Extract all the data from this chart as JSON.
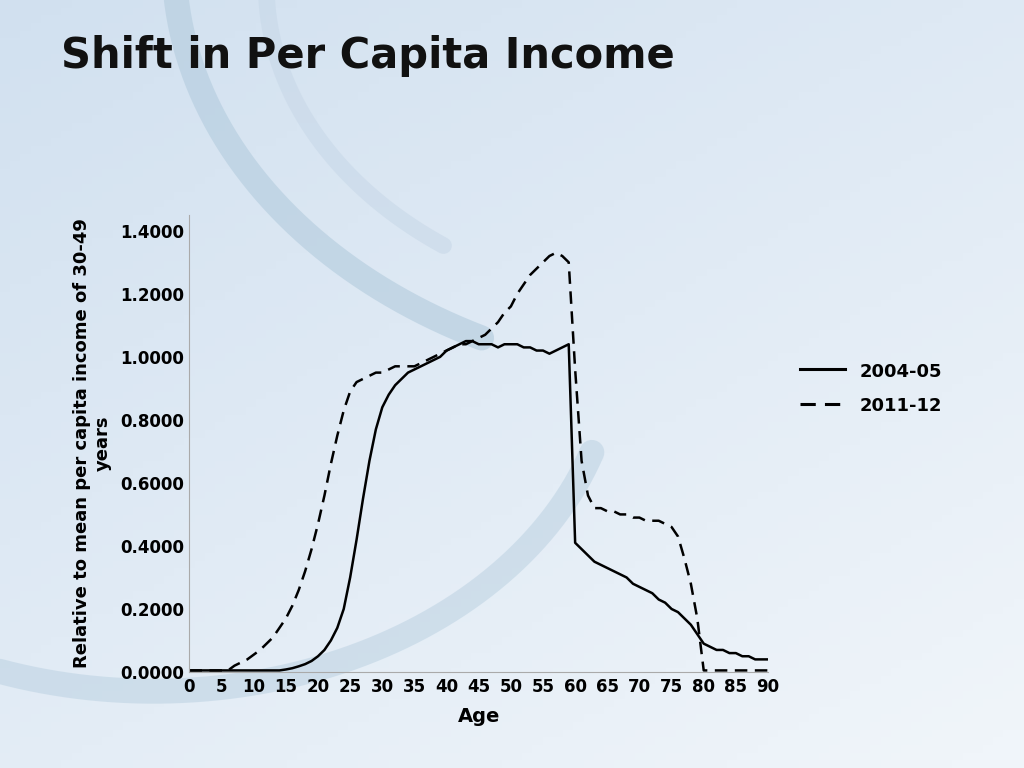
{
  "title": "Shift in Per Capita Income",
  "xlabel": "Age",
  "ylabel_line1": "Relative to mean per capita income of 30-49",
  "ylabel_line2": "years",
  "bg_color_top": "#ccd9e8",
  "bg_color_bottom": "#e8f0f8",
  "plot_bg": "#ffffff",
  "x_ticks": [
    0,
    5,
    10,
    15,
    20,
    25,
    30,
    35,
    40,
    45,
    50,
    55,
    60,
    65,
    70,
    75,
    80,
    85,
    90
  ],
  "ylim": [
    0.0,
    1.45
  ],
  "xlim": [
    0,
    90
  ],
  "y_ticks": [
    0.0,
    0.2,
    0.4,
    0.6,
    0.8,
    1.0,
    1.2,
    1.4
  ],
  "y_tick_labels": [
    "0.0000",
    "0.2000",
    "0.4000",
    "0.6000",
    "0.8000",
    "1.0000",
    "1.2000",
    "1.4000"
  ],
  "series_2004": {
    "label": "2004-05",
    "ages": [
      0,
      1,
      2,
      3,
      4,
      5,
      6,
      7,
      8,
      9,
      10,
      11,
      12,
      13,
      14,
      15,
      16,
      17,
      18,
      19,
      20,
      21,
      22,
      23,
      24,
      25,
      26,
      27,
      28,
      29,
      30,
      31,
      32,
      33,
      34,
      35,
      36,
      37,
      38,
      39,
      40,
      41,
      42,
      43,
      44,
      45,
      46,
      47,
      48,
      49,
      50,
      51,
      52,
      53,
      54,
      55,
      56,
      57,
      58,
      59,
      60,
      61,
      62,
      63,
      64,
      65,
      66,
      67,
      68,
      69,
      70,
      71,
      72,
      73,
      74,
      75,
      76,
      77,
      78,
      79,
      80,
      81,
      82,
      83,
      84,
      85,
      86,
      87,
      88,
      89,
      90
    ],
    "values": [
      0.005,
      0.005,
      0.005,
      0.005,
      0.005,
      0.005,
      0.005,
      0.005,
      0.005,
      0.005,
      0.005,
      0.005,
      0.005,
      0.005,
      0.005,
      0.008,
      0.012,
      0.018,
      0.025,
      0.035,
      0.05,
      0.07,
      0.1,
      0.14,
      0.2,
      0.3,
      0.42,
      0.55,
      0.67,
      0.77,
      0.84,
      0.88,
      0.91,
      0.93,
      0.95,
      0.96,
      0.97,
      0.98,
      0.99,
      1.0,
      1.02,
      1.03,
      1.04,
      1.05,
      1.05,
      1.04,
      1.04,
      1.04,
      1.03,
      1.04,
      1.04,
      1.04,
      1.03,
      1.03,
      1.02,
      1.02,
      1.01,
      1.02,
      1.03,
      1.04,
      0.41,
      0.39,
      0.37,
      0.35,
      0.34,
      0.33,
      0.32,
      0.31,
      0.3,
      0.28,
      0.27,
      0.26,
      0.25,
      0.23,
      0.22,
      0.2,
      0.19,
      0.17,
      0.15,
      0.12,
      0.09,
      0.08,
      0.07,
      0.07,
      0.06,
      0.06,
      0.05,
      0.05,
      0.04,
      0.04,
      0.04
    ]
  },
  "series_2011": {
    "label": "2011-12",
    "ages": [
      0,
      1,
      2,
      3,
      4,
      5,
      6,
      7,
      8,
      9,
      10,
      11,
      12,
      13,
      14,
      15,
      16,
      17,
      18,
      19,
      20,
      21,
      22,
      23,
      24,
      25,
      26,
      27,
      28,
      29,
      30,
      31,
      32,
      33,
      34,
      35,
      36,
      37,
      38,
      39,
      40,
      41,
      42,
      43,
      44,
      45,
      46,
      47,
      48,
      49,
      50,
      51,
      52,
      53,
      54,
      55,
      56,
      57,
      58,
      59,
      60,
      61,
      62,
      63,
      64,
      65,
      66,
      67,
      68,
      69,
      70,
      71,
      72,
      73,
      74,
      75,
      76,
      77,
      78,
      79,
      80,
      81,
      82,
      83,
      84,
      85,
      86,
      87,
      88,
      89,
      90
    ],
    "values": [
      0.005,
      0.005,
      0.005,
      0.005,
      0.005,
      0.005,
      0.005,
      0.02,
      0.03,
      0.04,
      0.055,
      0.07,
      0.09,
      0.11,
      0.14,
      0.17,
      0.21,
      0.26,
      0.32,
      0.39,
      0.47,
      0.56,
      0.66,
      0.75,
      0.83,
      0.89,
      0.92,
      0.93,
      0.94,
      0.95,
      0.95,
      0.96,
      0.97,
      0.97,
      0.97,
      0.97,
      0.98,
      0.99,
      1.0,
      1.01,
      1.02,
      1.03,
      1.04,
      1.04,
      1.05,
      1.06,
      1.07,
      1.09,
      1.11,
      1.14,
      1.16,
      1.2,
      1.23,
      1.26,
      1.28,
      1.3,
      1.32,
      1.33,
      1.32,
      1.3,
      0.96,
      0.67,
      0.56,
      0.52,
      0.52,
      0.51,
      0.51,
      0.5,
      0.5,
      0.49,
      0.49,
      0.48,
      0.48,
      0.48,
      0.47,
      0.46,
      0.43,
      0.36,
      0.28,
      0.17,
      0.005,
      0.005,
      0.005,
      0.005,
      0.005,
      0.005,
      0.005,
      0.005,
      0.005,
      0.005,
      0.005
    ]
  },
  "line_color": "#000000",
  "title_fontsize": 30,
  "axis_label_fontsize": 13,
  "tick_fontsize": 12,
  "legend_fontsize": 13
}
